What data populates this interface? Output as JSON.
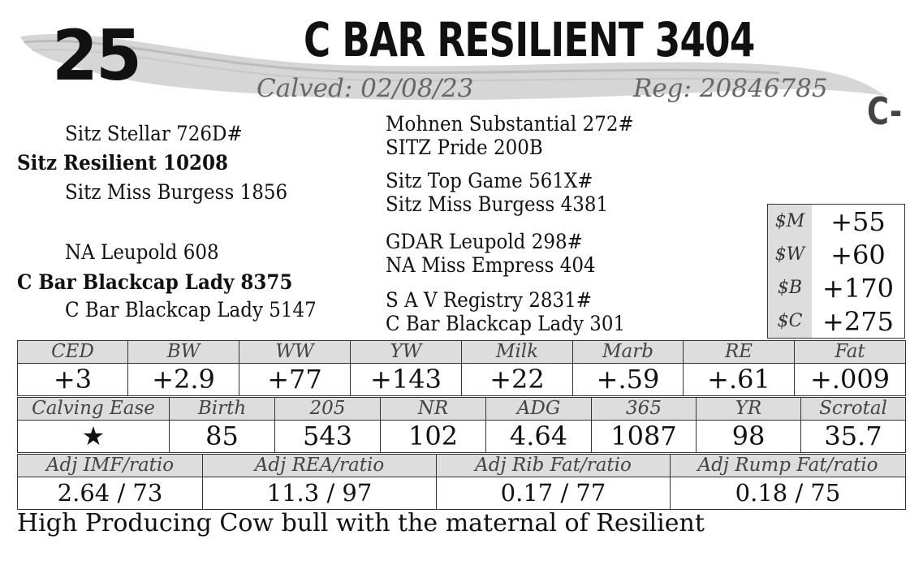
{
  "lot_number": "25",
  "bull_name": "C BAR RESILIENT 3404",
  "calved": "Calved: 02/08/23",
  "registration": "Reg: 20846785",
  "grade": "C-",
  "pedigree": {
    "sire_sire": "Sitz Stellar 726D#",
    "sire": "Sitz Resilient 10208",
    "sire_dam": "Sitz Miss Burgess 1856",
    "dam_sire": "NA Leupold 608",
    "dam": "C Bar Blackcap Lady 8375",
    "dam_dam": "C Bar Blackcap Lady 5147",
    "g1": "Mohnen Substantial 272#",
    "g2": "SITZ Pride 200B",
    "g3": "Sitz Top Game 561X#",
    "g4": "Sitz Miss Burgess 4381",
    "g5": "GDAR Leupold 298#",
    "g6": "NA Miss Empress 404",
    "g7": "S A V Registry 2831#",
    "g8": "C Bar Blackcap Lady 301"
  },
  "indexes": [
    {
      "label": "$M",
      "value": "+55"
    },
    {
      "label": "$W",
      "value": "+60"
    },
    {
      "label": "$B",
      "value": "+170"
    },
    {
      "label": "$C",
      "value": "+275"
    }
  ],
  "epds": {
    "headers": [
      "CED",
      "BW",
      "WW",
      "YW",
      "Milk",
      "Marb",
      "RE",
      "Fat"
    ],
    "values": [
      "+3",
      "+2.9",
      "+77",
      "+143",
      "+22",
      "+.59",
      "+.61",
      "+.009"
    ]
  },
  "performance": {
    "headers": [
      "Calving Ease",
      "Birth",
      "205",
      "NR",
      "ADG",
      "365",
      "YR",
      "Scrotal"
    ],
    "values": [
      "★",
      "85",
      "543",
      "102",
      "4.64",
      "1087",
      "98",
      "35.7"
    ]
  },
  "ultrasound": {
    "headers": [
      "Adj IMF/ratio",
      "Adj REA/ratio",
      "Adj Rib Fat/ratio",
      "Adj Rump Fat/ratio"
    ],
    "values": [
      "2.64 / 73",
      "11.3 / 97",
      "0.17 / 77",
      "0.18 / 75"
    ]
  },
  "comment": "High Producing Cow bull with the maternal of Resilient"
}
